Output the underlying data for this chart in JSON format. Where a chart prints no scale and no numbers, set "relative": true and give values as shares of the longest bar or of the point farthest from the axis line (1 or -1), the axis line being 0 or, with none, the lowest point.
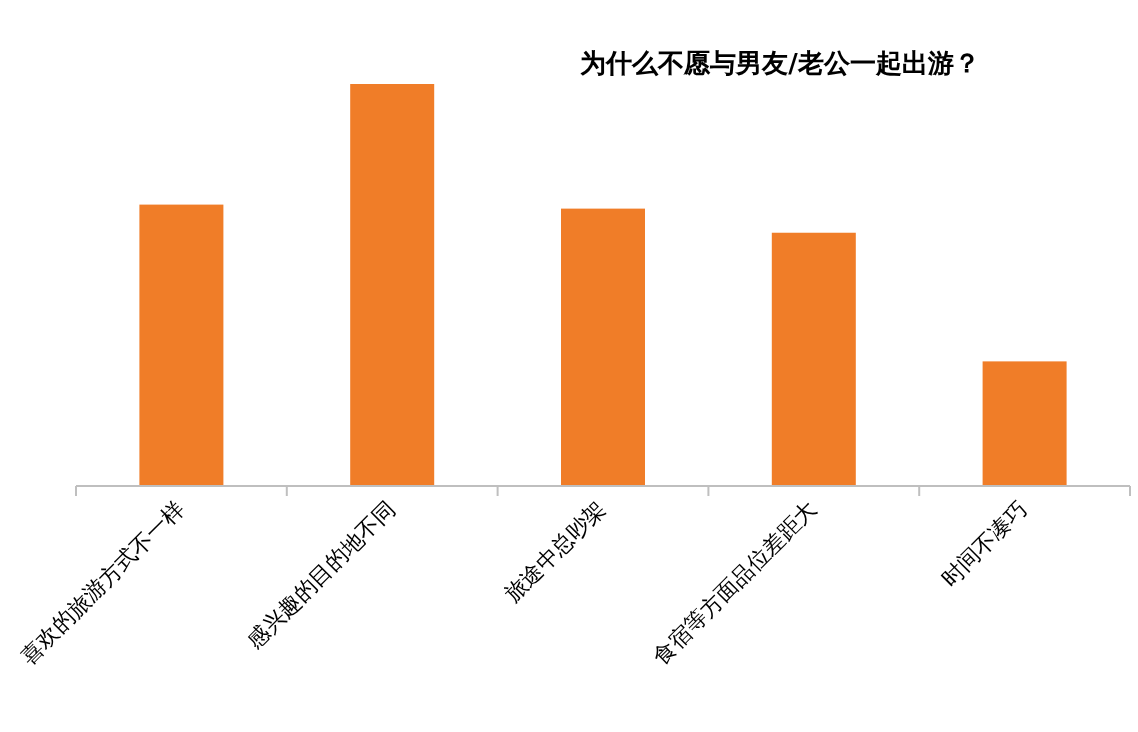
{
  "chart_data": {
    "type": "bar",
    "title": "为什么不愿与男友/老公一起出游？",
    "relative": true,
    "categories": [
      "喜欢的旅游方式不一样",
      "感兴趣的目的地不同",
      "旅途中总吵架",
      "食宿等方面品位差距大",
      "时间不凑巧"
    ],
    "values": [
      0.7,
      1,
      0.69,
      0.63,
      0.31
    ],
    "color": "#f07d28"
  }
}
